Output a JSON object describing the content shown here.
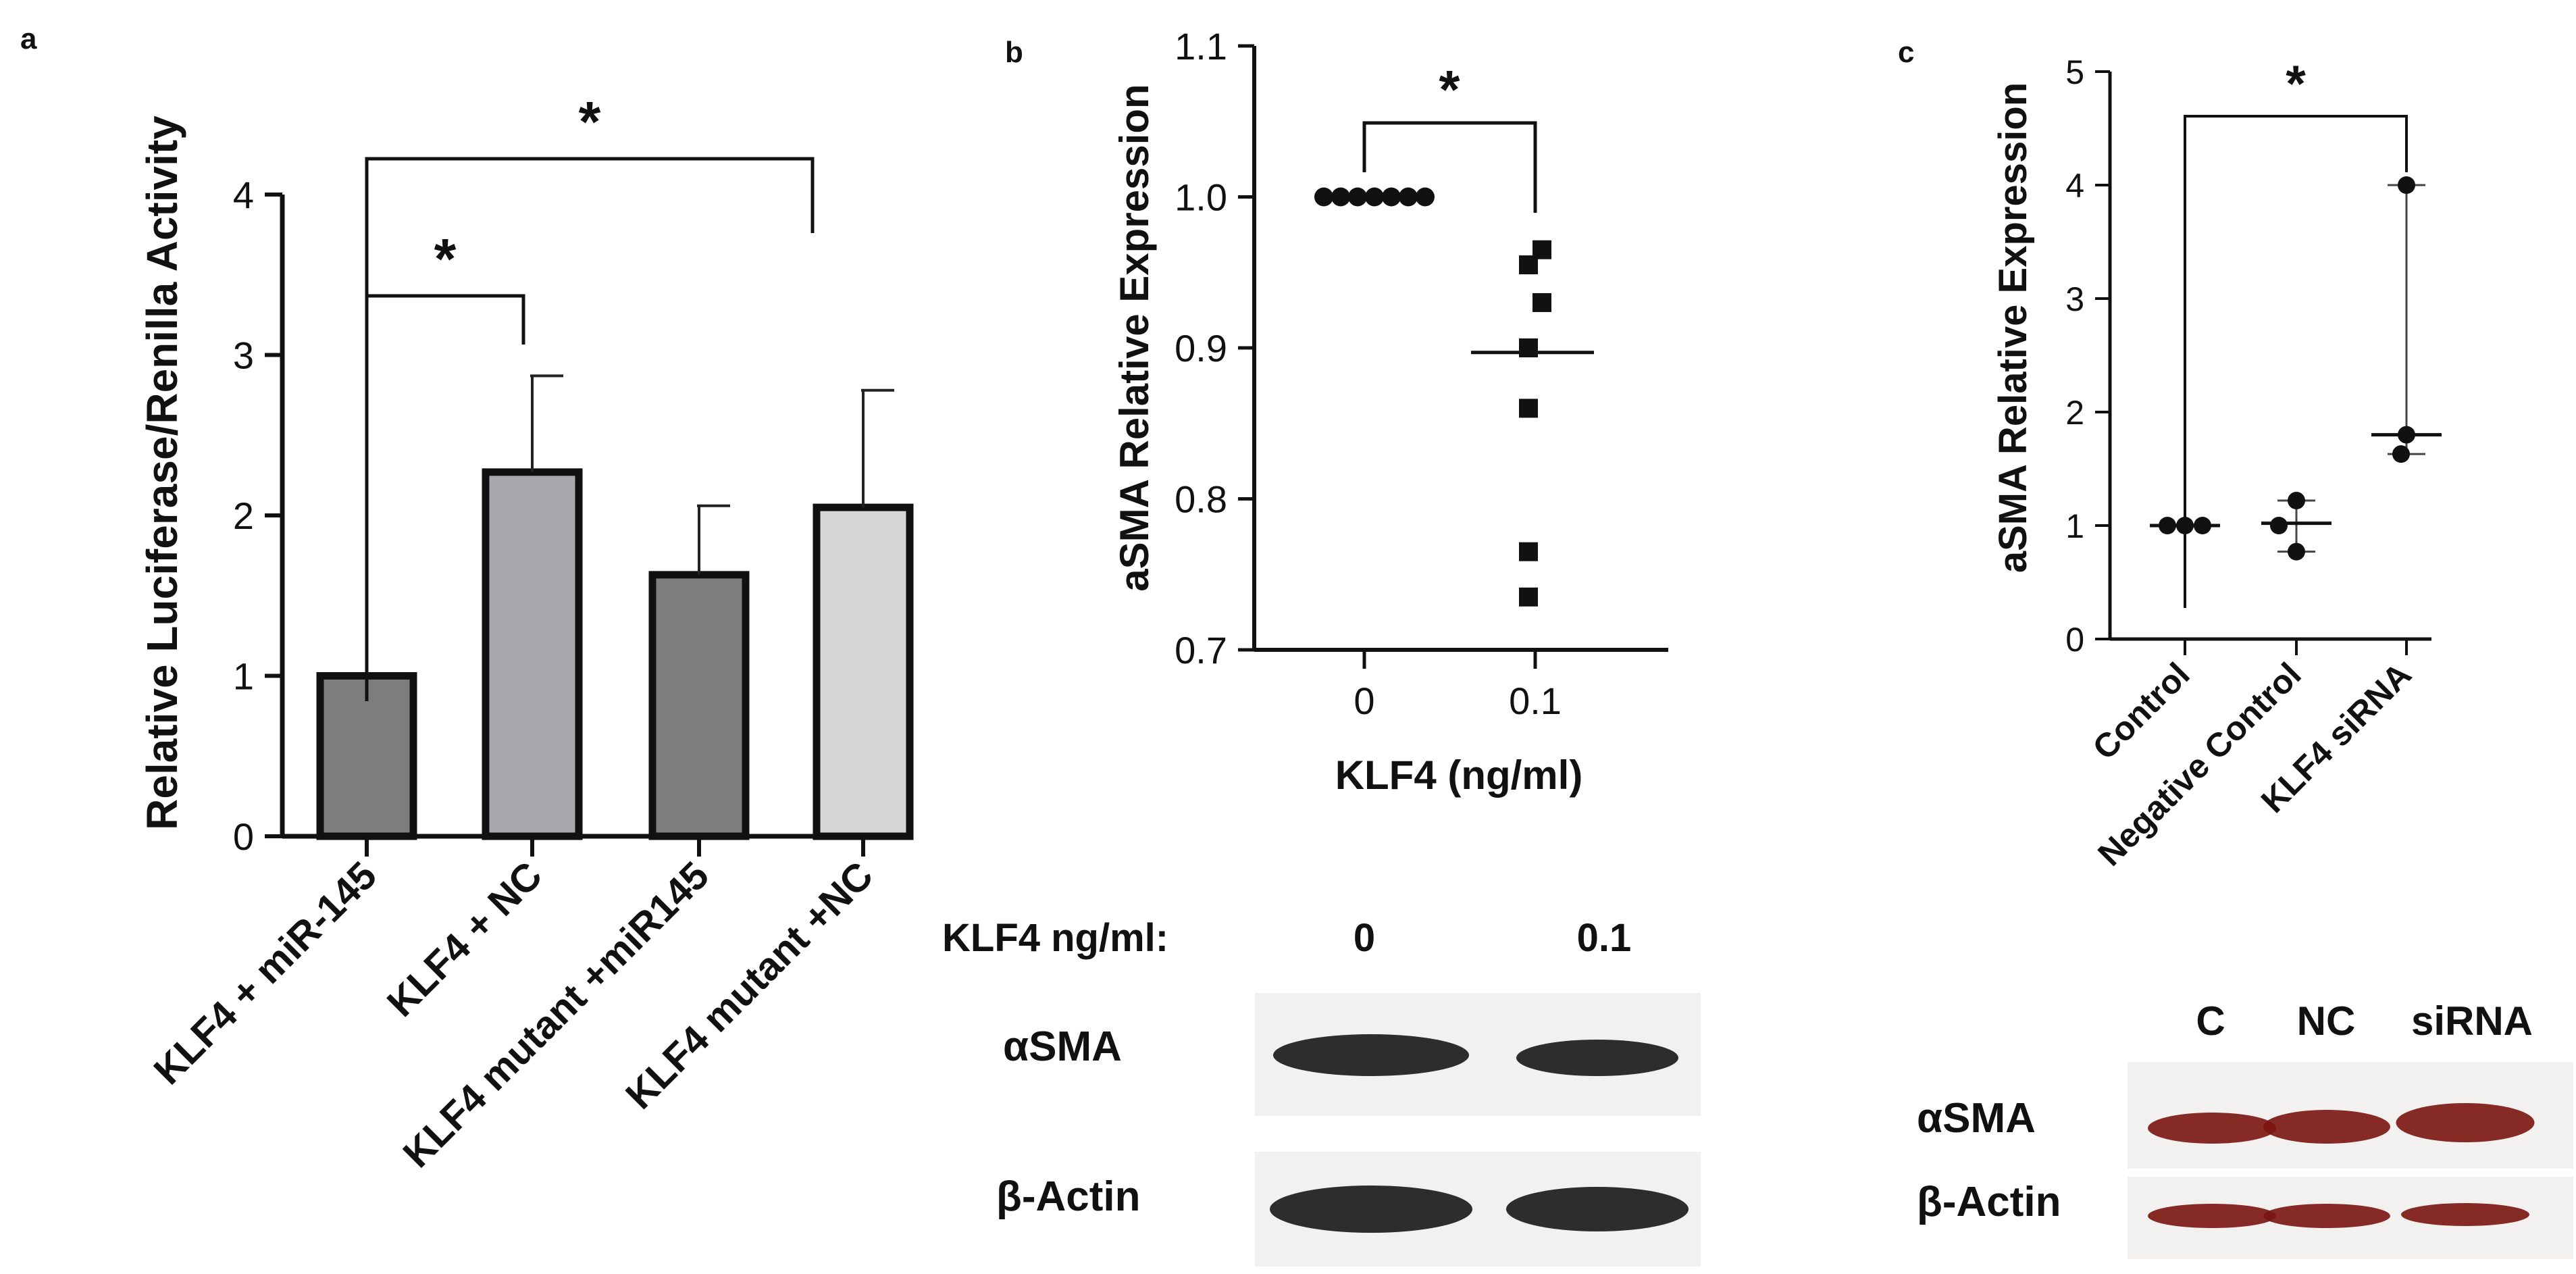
{
  "panels": [
    {
      "letter": "a"
    },
    {
      "letter": "b"
    },
    {
      "letter": "c"
    }
  ],
  "chart_data": [
    {
      "panel": "a",
      "type": "bar",
      "ylabel": "Relative Luciferase/Renilla Activity",
      "ylim": [
        0,
        4
      ],
      "yticks": [
        0,
        1,
        2,
        3,
        4
      ],
      "categories": [
        "KLF4 + miR-145",
        "KLF4 + NC",
        "KLF4 mutant +miR145",
        "KLF4 mutant +NC"
      ],
      "values": [
        1.0,
        2.27,
        1.63,
        2.05
      ],
      "errors": [
        0,
        0.6,
        0.43,
        0.73
      ],
      "colors": [
        "#7d7d7d",
        "#a8a8ad",
        "#7d7d7d",
        "#d6d6d6"
      ],
      "significance": [
        {
          "from": 0,
          "to": 1,
          "label": "*"
        },
        {
          "from": 0,
          "to": 3,
          "label": "*"
        }
      ]
    },
    {
      "panel": "b",
      "type": "scatter",
      "ylabel": "aSMA Relative Expression",
      "xlabel": "KLF4 (ng/ml)",
      "ylim": [
        0.7,
        1.1
      ],
      "yticks": [
        "0.7",
        "0.8",
        "0.9",
        "1.0",
        "1.1"
      ],
      "categories": [
        "0",
        "0.1"
      ],
      "groups": [
        {
          "values": [
            1.0,
            1.0,
            1.0,
            1.0,
            1.0,
            1.0,
            1.0
          ],
          "median": null,
          "marker": "circle"
        },
        {
          "values": [
            0.965,
            0.955,
            0.93,
            0.9,
            0.86,
            0.765,
            0.735
          ],
          "median": 0.897,
          "marker": "square"
        }
      ],
      "significance": [
        {
          "from": 0,
          "to": 1,
          "label": "*"
        }
      ]
    },
    {
      "panel": "c",
      "type": "scatter",
      "ylabel": "aSMA Relative Expression",
      "ylim": [
        0,
        5
      ],
      "yticks": [
        0,
        1,
        2,
        3,
        4,
        5
      ],
      "categories": [
        "Control",
        "Negative Control",
        "KLF4 siRNA"
      ],
      "groups": [
        {
          "values": [
            1.0,
            1.0,
            1.0
          ],
          "median": 1.0,
          "range": [
            1.0,
            1.0
          ]
        },
        {
          "values": [
            1.22,
            1.0,
            0.77
          ],
          "median": 1.02,
          "range": [
            0.77,
            1.22
          ]
        },
        {
          "values": [
            4.0,
            1.8,
            1.63
          ],
          "median": 1.8,
          "range": [
            1.63,
            4.0
          ]
        }
      ],
      "significance": [
        {
          "from": 0,
          "to": 2,
          "label": "*"
        }
      ]
    }
  ],
  "blots": [
    {
      "panel": "b",
      "header_label": "KLF4 ng/ml:",
      "lanes": [
        "0",
        "0.1"
      ],
      "rows": [
        "αSMA",
        "β-Actin"
      ],
      "band_color": "#1c1c1c"
    },
    {
      "panel": "c",
      "header_label": "",
      "lanes": [
        "C",
        "NC",
        "siRNA"
      ],
      "rows": [
        "αSMA",
        "β-Actin"
      ],
      "band_color": "#7a1410"
    }
  ]
}
